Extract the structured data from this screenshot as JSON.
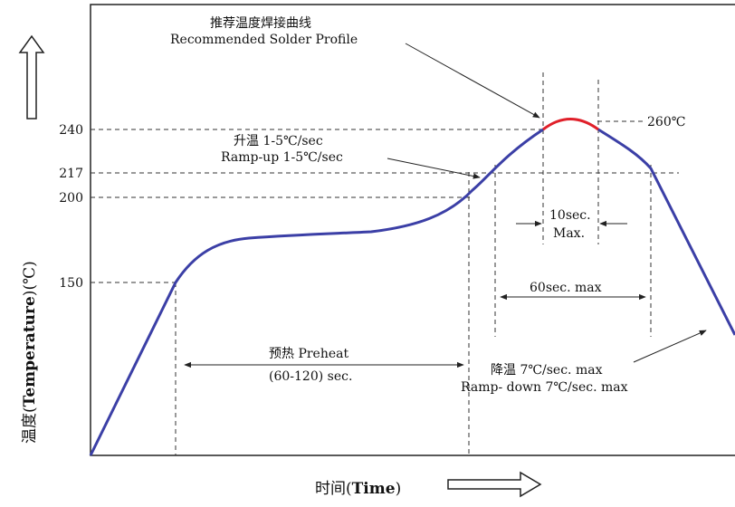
{
  "diagram": {
    "title_cn": "推荐温度焊接曲线",
    "title_en": "Recommended Solder Profile",
    "y_axis": {
      "label_cn_prefix": "温度(",
      "label_en": "Temperature",
      "label_cn_suffix": ")(℃)",
      "ticks": [
        "240",
        "217",
        "200",
        "150"
      ]
    },
    "x_axis": {
      "label_cn": "时间(",
      "label_en": "Time",
      "label_close": ")"
    },
    "peak_label": "260℃",
    "ramp_up": {
      "cn": "升温 1-5℃/sec",
      "en": "Ramp-up 1-5℃/sec"
    },
    "window_10s": {
      "line1": "10sec.",
      "line2": "Max."
    },
    "window_60s": "60sec. max",
    "preheat": {
      "cn": "预热 Preheat",
      "en": "(60-120) sec."
    },
    "ramp_down": {
      "cn": "降温 7℃/sec. max",
      "en": "Ramp- down 7℃/sec. max"
    },
    "colors": {
      "curve": "#3b3fa6",
      "peak": "#e0202a",
      "line": "#222222"
    }
  }
}
